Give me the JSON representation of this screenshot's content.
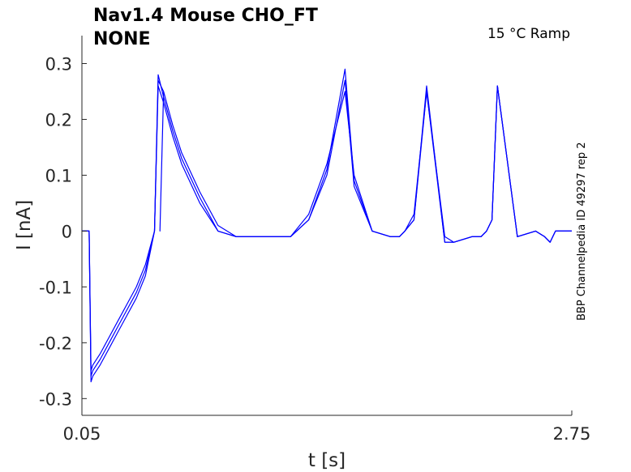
{
  "title": {
    "line1": "Nav1.4  Mouse  CHO_FT",
    "line2": "NONE"
  },
  "condition_label": "15 °C  Ramp",
  "side_label": "BBP Channelpedia ID 49297 rep 2",
  "chart_data": {
    "type": "line",
    "xlabel": "t [s]",
    "ylabel": "I [nA]",
    "xlim": [
      0.05,
      2.75
    ],
    "ylim": [
      -0.33,
      0.35
    ],
    "x_ticks": [
      {
        "value": 0.05,
        "label": "0.05"
      },
      {
        "value": 2.75,
        "label": "2.75"
      }
    ],
    "y_ticks": [
      {
        "value": 0.3,
        "label": "0.3"
      },
      {
        "value": 0.2,
        "label": "0.2"
      },
      {
        "value": 0.1,
        "label": "0.1"
      },
      {
        "value": 0,
        "label": "0"
      },
      {
        "value": -0.1,
        "label": "-0.1"
      },
      {
        "value": -0.2,
        "label": "-0.2"
      },
      {
        "value": -0.3,
        "label": "-0.3"
      }
    ],
    "grid": false,
    "line_color": "#0000ff",
    "series": [
      {
        "x": [
          0.05,
          0.07,
          0.09,
          0.1,
          0.11,
          0.15,
          0.2,
          0.25,
          0.3,
          0.35,
          0.4,
          0.45,
          0.47,
          0.5,
          0.48,
          0.5,
          0.55,
          0.6,
          0.7,
          0.8,
          0.9,
          1.0,
          1.1,
          1.2,
          1.3,
          1.4,
          1.5,
          1.55,
          1.65,
          1.75,
          1.8,
          1.83,
          1.88,
          1.95,
          2.05,
          2.1,
          2.2,
          2.25,
          2.28,
          2.31,
          2.34,
          2.45,
          2.55,
          2.6,
          2.63,
          2.66,
          2.7,
          2.75
        ],
        "y": [
          0.0,
          0.0,
          0.0,
          -0.25,
          -0.24,
          -0.22,
          -0.19,
          -0.16,
          -0.13,
          -0.1,
          -0.06,
          0.0,
          0.27,
          0.25,
          0.0,
          0.25,
          0.19,
          0.14,
          0.07,
          0.01,
          -0.01,
          -0.01,
          -0.01,
          -0.01,
          0.03,
          0.12,
          0.25,
          0.1,
          0.0,
          -0.01,
          -0.01,
          0.0,
          0.03,
          0.25,
          -0.01,
          -0.02,
          -0.01,
          -0.01,
          0.0,
          0.02,
          0.26,
          -0.01,
          0.0,
          -0.01,
          -0.02,
          0.0,
          0.0,
          0.0
        ]
      },
      {
        "x": [
          0.05,
          0.07,
          0.09,
          0.1,
          0.11,
          0.15,
          0.2,
          0.25,
          0.3,
          0.35,
          0.4,
          0.45,
          0.47,
          0.5,
          0.55,
          0.6,
          0.7,
          0.8,
          0.9,
          1.0,
          1.1,
          1.2,
          1.3,
          1.4,
          1.5,
          1.55,
          1.65,
          1.75,
          1.8,
          1.83,
          1.88,
          1.95,
          2.05,
          2.1,
          2.2,
          2.25,
          2.28,
          2.31,
          2.34,
          2.45,
          2.55,
          2.6,
          2.63,
          2.66,
          2.7,
          2.75
        ],
        "y": [
          0.0,
          0.0,
          0.0,
          -0.26,
          -0.25,
          -0.23,
          -0.2,
          -0.17,
          -0.14,
          -0.11,
          -0.07,
          0.0,
          0.28,
          0.24,
          0.18,
          0.13,
          0.06,
          0.0,
          -0.01,
          -0.01,
          -0.01,
          -0.01,
          0.02,
          0.11,
          0.29,
          0.09,
          0.0,
          -0.01,
          -0.01,
          0.0,
          0.02,
          0.26,
          -0.02,
          -0.02,
          -0.01,
          -0.01,
          0.0,
          0.02,
          0.26,
          -0.01,
          0.0,
          -0.01,
          -0.02,
          0.0,
          0.0,
          0.0
        ]
      },
      {
        "x": [
          0.05,
          0.07,
          0.09,
          0.1,
          0.11,
          0.15,
          0.2,
          0.25,
          0.3,
          0.35,
          0.4,
          0.45,
          0.47,
          0.5,
          0.55,
          0.6,
          0.7,
          0.8,
          0.9,
          1.0,
          1.1,
          1.2,
          1.3,
          1.4,
          1.5,
          1.55,
          1.65,
          1.75,
          1.8,
          1.83,
          1.88,
          1.95,
          2.05,
          2.1,
          2.2,
          2.25,
          2.28,
          2.31,
          2.34,
          2.45,
          2.55,
          2.6,
          2.63,
          2.66,
          2.7,
          2.75
        ],
        "y": [
          0.0,
          0.0,
          0.0,
          -0.27,
          -0.26,
          -0.24,
          -0.21,
          -0.18,
          -0.15,
          -0.12,
          -0.08,
          0.0,
          0.26,
          0.23,
          0.17,
          0.12,
          0.05,
          0.0,
          -0.01,
          -0.01,
          -0.01,
          -0.01,
          0.02,
          0.1,
          0.27,
          0.08,
          0.0,
          -0.01,
          -0.01,
          0.0,
          0.02,
          0.25,
          -0.02,
          -0.02,
          -0.01,
          -0.01,
          0.0,
          0.02,
          0.26,
          -0.01,
          0.0,
          -0.01,
          -0.02,
          0.0,
          0.0,
          0.0
        ]
      }
    ]
  }
}
